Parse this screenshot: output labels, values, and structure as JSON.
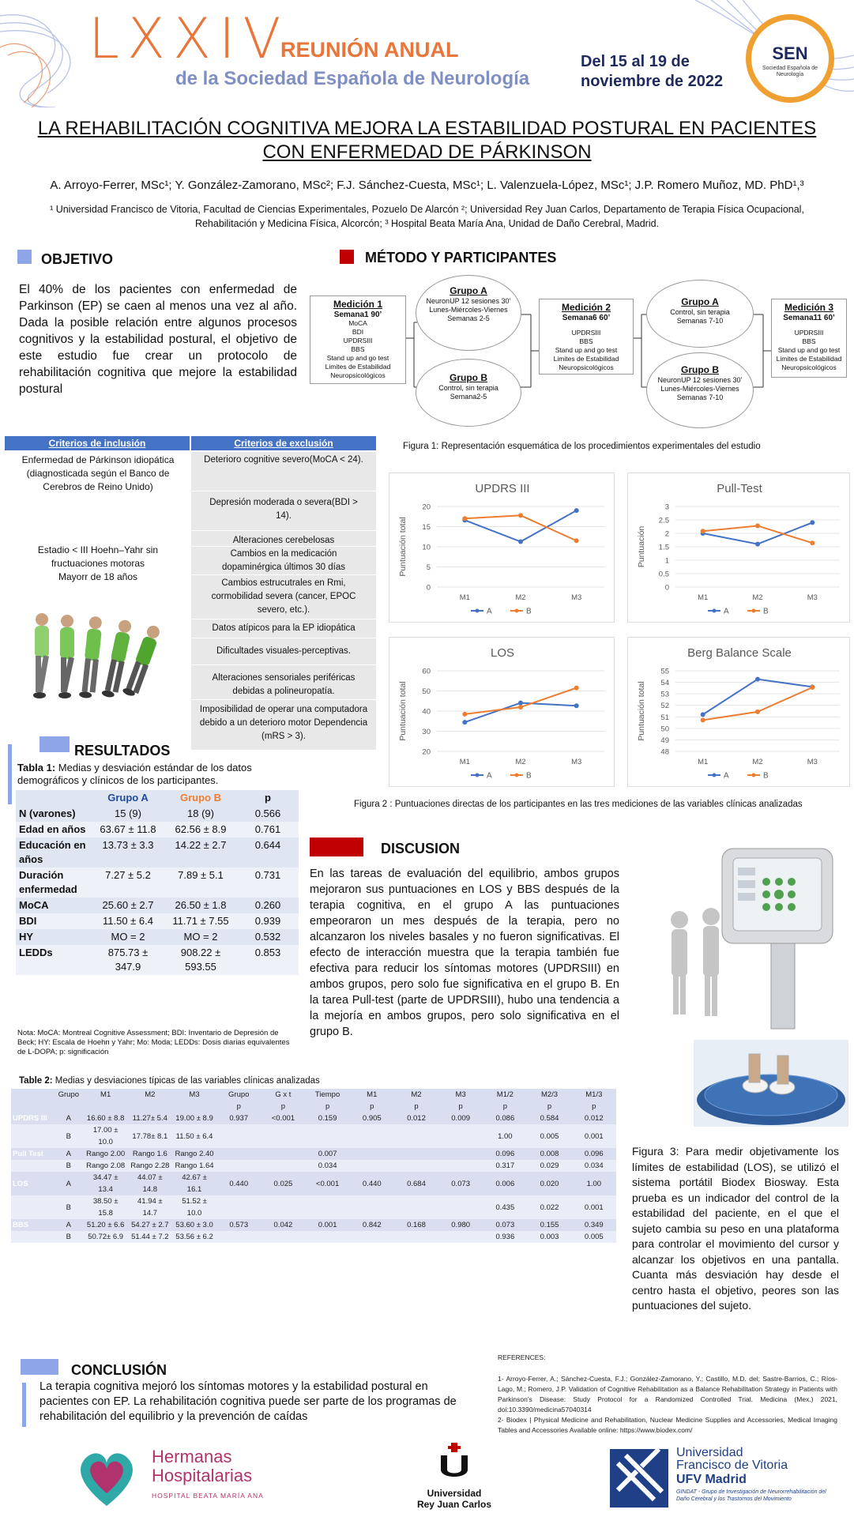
{
  "header": {
    "conference_number": "LXXIV",
    "conference_title": "REUNIÓN ANUAL",
    "conference_subtitle": "de la Sociedad Española de Neurología",
    "dates_line1": "Del 15 al 19 de",
    "dates_line2": "noviembre de 2022",
    "sen_logo": "SEN",
    "sen_logo_sub": "Sociedad Española de Neurología"
  },
  "title": "LA REHABILITACIÓN COGNITIVA MEJORA LA ESTABILIDAD POSTURAL EN PACIENTES CON ENFERMEDAD DE PÁRKINSON",
  "authors": "A. Arroyo-Ferrer, MSc¹; Y. González-Zamorano, MSc²; F.J. Sánchez-Cuesta, MSc¹; L. Valenzuela-López, MSc¹; J.P. Romero Muñoz, MD. PhD¹,³",
  "affiliations": "¹ Universidad Francisco de Vitoria, Facultad de Ciencias Experimentales, Pozuelo De Alarcón ²; Universidad Rey Juan Carlos, Departamento de Terapia Física Ocupacional, Rehabilitación y Medicina Física, Alcorcón; ³ Hospital Beata María Ana, Unidad de Daño Cerebral, Madrid.",
  "objetivo": {
    "heading": "OBJETIVO",
    "text": "El 40% de los pacientes con enfermedad de Parkinson (EP) se caen al menos una vez al año. Dada la posible relación entre algunos procesos cognitivos y la estabilidad postural, el objetivo de este estudio fue crear un protocolo de rehabilitación cognitiva que mejore la estabilidad postural"
  },
  "metodo": {
    "heading": "MÉTODO Y PARTICIPANTES",
    "med1_title": "Medición 1",
    "med1_week": "Semana1 90’",
    "med1_items": [
      "MoCA",
      "BDI",
      "UPDRSIII",
      "BBS",
      "Stand up and go test",
      "Limites de Estabilidad",
      "Neuropsicológicos"
    ],
    "grupoA1_title": "Grupo A",
    "grupoA1_text": [
      "NeuronUP 12 sesiones 30’",
      "Lunes-Miércoles-Viernes",
      "Semanas 2-5"
    ],
    "grupoB1_title": "Grupo B",
    "grupoB1_text": [
      "Control, sin terapia",
      "Semana2-5"
    ],
    "med2_title": "Medición 2",
    "med2_week": "Semana6 60’",
    "med2_items": [
      "UPDRSIII",
      "BBS",
      "Stand up and go test",
      "Limites de Estabilidad",
      "Neuropsicológicos"
    ],
    "grupoA2_title": "Grupo A",
    "grupoA2_text": [
      "Control, sin terapia",
      "Semanas 7-10"
    ],
    "grupoB2_title": "Grupo B",
    "grupoB2_text": [
      "NeuronUP 12 sesiones 30’",
      "Lunes-Miércoles-Viernes",
      "Semanas 7-10"
    ],
    "med3_title": "Medición 3",
    "med3_week": "Semana11 60’",
    "med3_items": [
      "UPDRSIII",
      "BBS",
      "Stand up and go test",
      "Limites de Estabilidad",
      "Neuropsicológicos"
    ],
    "fig1_caption": "Figura 1:  Representación esquemática de los procedimientos experimentales del estudio"
  },
  "criterios": {
    "inclusion_header": "Criterios de inclusión",
    "exclusion_header": "Criterios de exclusión",
    "inclusion": [
      "Enfermedad de Párkinson idiopática (diagnosticada según el Banco de Cerebros de Reino Unido)",
      "Estadio < III Hoehn–Yahr sin fructuaciones motoras",
      "Mayorr de 18 años"
    ],
    "exclusion": [
      "Deterioro cognitive severo(MoCA < 24).",
      "Depresión moderada o severa(BDI > 14).",
      "Alteraciones cerebelosas",
      "Cambios en la medicación dopaminérgica últimos 30 días",
      "Cambios estrucutrales en Rmi, cormobilidad severa (cancer, EPOC severo, etc.).",
      "Datos atípicos para la EP idiopática",
      "Dificultades visuales-perceptivas.",
      "Alteraciones sensoriales periféricas debidas a polineuropatía.",
      "Imposibilidad de operar una computadora debido a un deterioro motor Dependencia (mRS > 3)."
    ]
  },
  "chart_data": [
    {
      "type": "line",
      "title": "UPDRS III",
      "ylabel": "Puntuación total",
      "categories": [
        "M1",
        "M2",
        "M3"
      ],
      "ylim": [
        0,
        20
      ],
      "yticks": [
        0,
        5,
        10,
        15,
        20
      ],
      "series": [
        {
          "name": "A",
          "color": "#4472c4",
          "values": [
            16.6,
            11.27,
            19.0
          ]
        },
        {
          "name": "B",
          "color": "#ed7d31",
          "values": [
            17.0,
            17.78,
            11.5
          ]
        }
      ]
    },
    {
      "type": "line",
      "title": "Pull-Test",
      "ylabel": "Puntuación",
      "categories": [
        "M1",
        "M2",
        "M3"
      ],
      "ylim": [
        0,
        3
      ],
      "yticks": [
        0,
        0.5,
        1,
        1.5,
        2,
        2.5,
        3
      ],
      "series": [
        {
          "name": "A",
          "color": "#4472c4",
          "values": [
            2.0,
            1.6,
            2.4
          ]
        },
        {
          "name": "B",
          "color": "#ed7d31",
          "values": [
            2.08,
            2.28,
            1.64
          ]
        }
      ]
    },
    {
      "type": "line",
      "title": "LOS",
      "ylabel": "Puntuación total",
      "categories": [
        "M1",
        "M2",
        "M3"
      ],
      "ylim": [
        20,
        60
      ],
      "yticks": [
        20,
        30,
        40,
        50,
        60
      ],
      "series": [
        {
          "name": "A",
          "color": "#4472c4",
          "values": [
            34.47,
            44.07,
            42.67
          ]
        },
        {
          "name": "B",
          "color": "#ed7d31",
          "values": [
            38.5,
            41.94,
            51.52
          ]
        }
      ]
    },
    {
      "type": "line",
      "title": "Berg Balance Scale",
      "ylabel": "Puntuación total",
      "categories": [
        "M1",
        "M2",
        "M3"
      ],
      "ylim": [
        48,
        55
      ],
      "yticks": [
        48,
        49,
        50,
        51,
        52,
        53,
        54,
        55
      ],
      "series": [
        {
          "name": "A",
          "color": "#4472c4",
          "values": [
            51.2,
            54.27,
            53.6
          ]
        },
        {
          "name": "B",
          "color": "#ed7d31",
          "values": [
            50.72,
            51.44,
            53.56
          ]
        }
      ]
    }
  ],
  "fig2_caption": "Figura 2 : Puntuaciones directas de los participantes en las tres mediciones de las variables clínicas analizadas",
  "resultados": {
    "heading": "RESULTADOS",
    "table1_label": "Tabla 1:",
    "table1_caption": " Medias y desviación estándar de los datos demográficos y clínicos de los participantes.",
    "table1_header": [
      "",
      "Grupo A",
      "Grupo B",
      "p"
    ],
    "table1_rows": [
      [
        "N (varones)",
        "15 (9)",
        "18 (9)",
        "0.566"
      ],
      [
        "Edad en años",
        "63.67 ± 11.8",
        "62.56 ± 8.9",
        "0.761"
      ],
      [
        "Educación en años",
        "13.73 ± 3.3",
        "14.22 ± 2.7",
        "0.644"
      ],
      [
        "Duración enfermedad",
        "7.27 ± 5.2",
        "7.89 ± 5.1",
        "0.731"
      ],
      [
        "MoCA",
        "25.60 ± 2.7",
        "26.50 ± 1.8",
        "0.260"
      ],
      [
        "BDI",
        "11.50 ± 6.4",
        "11.71 ± 7.55",
        "0.939"
      ],
      [
        "HY",
        "MO = 2",
        "MO = 2",
        "0.532"
      ],
      [
        "LEDDs",
        "875.73 ± 347.9",
        "908.22 ± 593.55",
        "0.853"
      ]
    ],
    "table1_note": "Nota: MoCA: Montreal Cognitive Assessment; BDI: Inventario de Depresión de Beck; HY: Escala de Hoehn y Yahr; Mo: Moda; LEDDs: Dosis diarias equivalentes de L-DOPA; p: significación",
    "table2_label": "Table 2:",
    "table2_caption": " Medias y desviaciones típicas de las variables clínicas analizadas",
    "table2_header1": [
      "",
      "Grupo",
      "M1",
      "M2",
      "M3",
      "Grupo",
      "G x t",
      "Tiempo",
      "M1",
      "M2",
      "M3",
      "M1/2",
      "M2/3",
      "M1/3"
    ],
    "table2_header2": [
      "",
      "",
      "",
      "",
      "",
      "p",
      "p",
      "p",
      "p",
      "p",
      "p",
      "p",
      "p",
      "p"
    ],
    "table2_rows": [
      [
        "UPDRS III",
        "A",
        "16.60 ± 8.8",
        "11.27± 5.4",
        "19.00 ± 8.9",
        "0.937",
        "<0.001",
        "0.159",
        "0.905",
        "0.012",
        "0.009",
        "0.086",
        "0.584",
        "0.012"
      ],
      [
        "",
        "B",
        "17.00 ± 10.0",
        "17.78± 8.1",
        "11.50 ± 6.4",
        "",
        "",
        "",
        "",
        "",
        "",
        "1.00",
        "0.005",
        "0.001"
      ],
      [
        "Pull Test",
        "A",
        "Rango 2.00",
        "Rango 1.6",
        "Rango 2.40",
        "",
        "",
        "0.007",
        "",
        "",
        "",
        "0.096",
        "0.008",
        "0.096"
      ],
      [
        "",
        "B",
        "Rango 2.08",
        "Rango 2.28",
        "Rango 1.64",
        "",
        "",
        "0.034",
        "",
        "",
        "",
        "0.317",
        "0.029",
        "0.034"
      ],
      [
        "LOS",
        "A",
        "34.47 ± 13.4",
        "44.07 ± 14.8",
        "42.67 ± 16.1",
        "0.440",
        "0.025",
        "<0.001",
        "0.440",
        "0.684",
        "0.073",
        "0.006",
        "0.020",
        "1.00"
      ],
      [
        "",
        "B",
        "38.50 ± 15.8",
        "41.94 ± 14.7",
        "51.52 ± 10.0",
        "",
        "",
        "",
        "",
        "",
        "",
        "0.435",
        "0.022",
        "0.001"
      ],
      [
        "BBS",
        "A",
        "51.20 ± 6.6",
        "54.27 ± 2.7",
        "53.60 ± 3.0",
        "0.573",
        "0.042",
        "0.001",
        "0.842",
        "0.168",
        "0.980",
        "0.073",
        "0.155",
        "0.349"
      ],
      [
        "",
        "B",
        "50.72± 6.9",
        "51.44 ± 7.2",
        "53.56 ± 6.2",
        "",
        "",
        "",
        "",
        "",
        "",
        "0.936",
        "0.003",
        "0.005"
      ]
    ]
  },
  "discusion": {
    "heading": "DISCUSION",
    "text": "En las tareas de evaluación del equilibrio, ambos grupos mejoraron sus puntuaciones en LOS y BBS después de la terapia cognitiva, en el grupo A las puntuaciones empeoraron un mes después de la terapia, pero no alcanzaron los niveles basales y no fueron significativas. El efecto de interacción muestra que la terapia también fue efectiva para reducir los síntomas motores (UPDRSIII) en ambos grupos, pero solo fue significativa en el grupo B. En la tarea Pull-test (parte de UPDRSIII), hubo una tendencia a la mejoría en ambos grupos, pero solo significativa en el grupo B."
  },
  "fig3_caption": "Figura 3: Para medir objetivamente los límites de estabilidad (LOS), se utilizó el sistema portátil Biodex Biosway. Esta prueba es un indicador del control de la estabilidad del paciente, en el que el sujeto cambia su peso en una plataforma para controlar el movimiento del cursor y alcanzar los objetivos en una pantalla. Cuanta más desviación hay desde el centro hasta el objetivo, peores son las puntuaciones del sujeto.",
  "conclusion": {
    "heading": "CONCLUSIÓN",
    "text": "La terapia cognitiva mejoró los síntomas motores y la estabilidad postural en pacientes con EP. La rehabilitación cognitiva puede ser parte de los programas de rehabilitación del equilibrio y la prevención de caídas"
  },
  "references": {
    "heading": "REFERENCES:",
    "items": [
      "1- Arroyo-Ferrer, A.; Sánchez-Cuesta, F.J.; González-Zamorano, Y.; Castillo, M.D. del; Sastre-Barrios, C.; Ríos-Lago, M.; Romero, J.P. Validation of Cognitive Rehabilitation as a Balance Rehabilitation Strategy in Patients with Parkinson’s Disease: Study Protocol for a Randomized Controlled Trial. Medicina (Mex.) 2021, doi:10.3390/medicina57040314",
      "2- Biodex | Physical Medicine and Rehabilitation, Nuclear Medicine Supplies and Accessories, Medical Imaging Tables and Accessories Available online: https://www.biodex.com/"
    ]
  },
  "logos": {
    "hh_line1": "Hermanas",
    "hh_line2": "Hospitalarias",
    "hh_line3": "HOSPITAL BEATA MARÍA ANA",
    "urjc_line1": "Universidad",
    "urjc_line2": "Rey Juan Carlos",
    "ufv_line1": "Universidad",
    "ufv_line2": "Francisco de Vitoria",
    "ufv_line3": "UFV Madrid",
    "ufv_line4": "GINDAT - Grupo de Investigación de Neurorrehabilitación del Daño Cerebral y los Trastornos del Movimiento"
  },
  "colors": {
    "blue": "#4472c4",
    "orange": "#ed7d31",
    "red_mark": "#c00000",
    "light_blue_mark": "#8ea6e8"
  }
}
